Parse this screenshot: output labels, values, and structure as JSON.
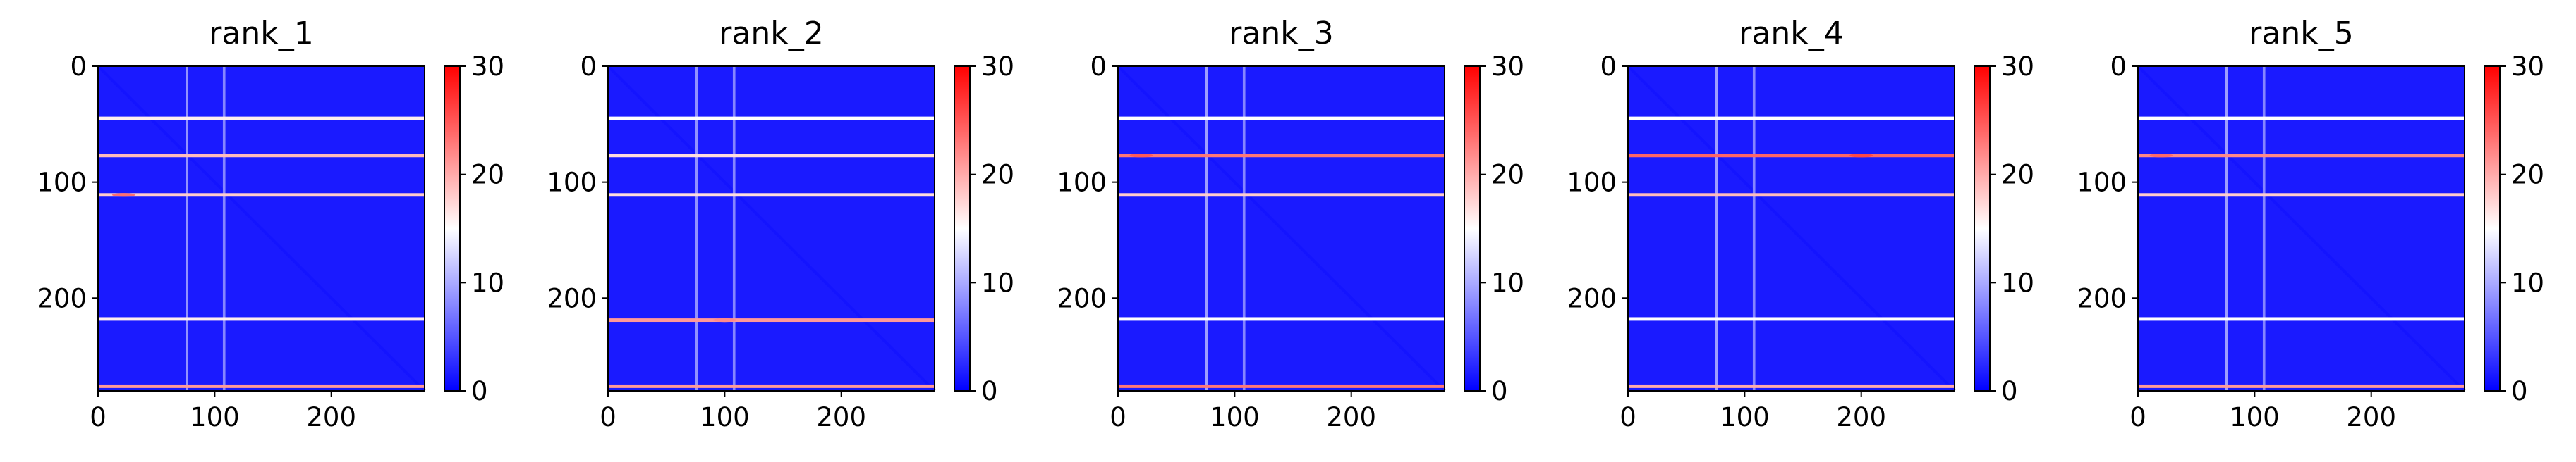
{
  "colors": {
    "cmap_low": "#0000ff",
    "cmap_mid": "#ffffff",
    "cmap_high": "#ff0000",
    "frame": "#000000"
  },
  "chart_data": [
    {
      "type": "heatmap",
      "title": "rank_1",
      "colormap": "bwr",
      "x_ticks": [
        0,
        100,
        200
      ],
      "y_ticks": [
        0,
        100,
        200
      ],
      "xlim": [
        0,
        280
      ],
      "ylim": [
        280,
        0
      ],
      "colorbar": {
        "range": [
          0,
          30
        ],
        "ticks": [
          0,
          10,
          20,
          30
        ]
      },
      "bands": [
        {
          "row": 45,
          "value": 16
        },
        {
          "row": 77,
          "value": 19
        },
        {
          "row": 111,
          "value": 18
        },
        {
          "row": 218,
          "value": 16
        },
        {
          "row": 276,
          "value": 21
        }
      ],
      "columns": [
        {
          "col": 76,
          "value": 11
        },
        {
          "col": 108,
          "value": 10
        }
      ],
      "hotspots": [
        {
          "row": 111,
          "col": 22,
          "value": 24
        }
      ]
    },
    {
      "type": "heatmap",
      "title": "rank_2",
      "colormap": "bwr",
      "x_ticks": [
        0,
        100,
        200
      ],
      "y_ticks": [
        0,
        100,
        200
      ],
      "xlim": [
        0,
        280
      ],
      "ylim": [
        280,
        0
      ],
      "colorbar": {
        "range": [
          0,
          30
        ],
        "ticks": [
          0,
          10,
          20,
          30
        ]
      },
      "bands": [
        {
          "row": 45,
          "value": 15
        },
        {
          "row": 77,
          "value": 17
        },
        {
          "row": 111,
          "value": 17
        },
        {
          "row": 219,
          "value": 21
        },
        {
          "row": 276,
          "value": 21
        }
      ],
      "columns": [
        {
          "col": 76,
          "value": 11
        },
        {
          "col": 108,
          "value": 10
        }
      ],
      "hotspots": [
        {
          "row": 219,
          "col": 100,
          "value": 22
        }
      ]
    },
    {
      "type": "heatmap",
      "title": "rank_3",
      "colormap": "bwr",
      "x_ticks": [
        0,
        100,
        200
      ],
      "y_ticks": [
        0,
        100,
        200
      ],
      "xlim": [
        0,
        280
      ],
      "ylim": [
        280,
        0
      ],
      "colorbar": {
        "range": [
          0,
          30
        ],
        "ticks": [
          0,
          10,
          20,
          30
        ]
      },
      "bands": [
        {
          "row": 45,
          "value": 15
        },
        {
          "row": 77,
          "value": 23
        },
        {
          "row": 111,
          "value": 18
        },
        {
          "row": 218,
          "value": 15
        },
        {
          "row": 276,
          "value": 23
        }
      ],
      "columns": [
        {
          "col": 76,
          "value": 12
        },
        {
          "col": 108,
          "value": 10
        }
      ],
      "hotspots": [
        {
          "row": 77,
          "col": 20,
          "value": 25
        }
      ]
    },
    {
      "type": "heatmap",
      "title": "rank_4",
      "colormap": "bwr",
      "x_ticks": [
        0,
        100,
        200
      ],
      "y_ticks": [
        0,
        100,
        200
      ],
      "xlim": [
        0,
        280
      ],
      "ylim": [
        280,
        0
      ],
      "colorbar": {
        "range": [
          0,
          30
        ],
        "ticks": [
          0,
          10,
          20,
          30
        ]
      },
      "bands": [
        {
          "row": 45,
          "value": 15
        },
        {
          "row": 77,
          "value": 24
        },
        {
          "row": 111,
          "value": 19
        },
        {
          "row": 218,
          "value": 15
        },
        {
          "row": 276,
          "value": 20
        }
      ],
      "columns": [
        {
          "col": 76,
          "value": 12
        },
        {
          "col": 108,
          "value": 10
        }
      ],
      "hotspots": [
        {
          "row": 77,
          "col": 200,
          "value": 26
        }
      ]
    },
    {
      "type": "heatmap",
      "title": "rank_5",
      "colormap": "bwr",
      "x_ticks": [
        0,
        100,
        200
      ],
      "y_ticks": [
        0,
        100,
        200
      ],
      "xlim": [
        0,
        280
      ],
      "ylim": [
        280,
        0
      ],
      "colorbar": {
        "range": [
          0,
          30
        ],
        "ticks": [
          0,
          10,
          20,
          30
        ]
      },
      "bands": [
        {
          "row": 45,
          "value": 15
        },
        {
          "row": 77,
          "value": 22
        },
        {
          "row": 111,
          "value": 18
        },
        {
          "row": 218,
          "value": 15
        },
        {
          "row": 276,
          "value": 21
        }
      ],
      "columns": [
        {
          "col": 76,
          "value": 12
        },
        {
          "col": 108,
          "value": 10
        }
      ],
      "hotspots": [
        {
          "row": 77,
          "col": 20,
          "value": 24
        }
      ]
    }
  ]
}
